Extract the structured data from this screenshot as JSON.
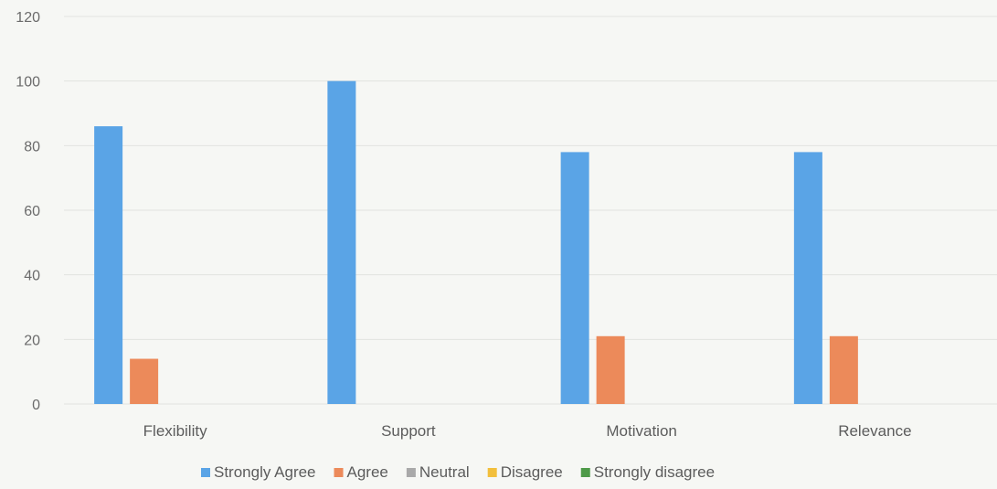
{
  "chart_data": {
    "type": "bar",
    "categories": [
      "Flexibility",
      "Support",
      "Motivation",
      "Relevance"
    ],
    "series": [
      {
        "name": "Strongly Agree",
        "values": [
          86,
          100,
          78,
          78
        ]
      },
      {
        "name": "Agree",
        "values": [
          14,
          0,
          21,
          21
        ]
      },
      {
        "name": "Neutral",
        "values": [
          0,
          0,
          0,
          0
        ]
      },
      {
        "name": "Disagree",
        "values": [
          0,
          0,
          0,
          0
        ]
      },
      {
        "name": "Strongly disagree",
        "values": [
          0,
          0,
          0,
          0
        ]
      }
    ],
    "title": "",
    "xlabel": "",
    "ylabel": "",
    "ylim": [
      0,
      120
    ],
    "yticks": [
      0,
      20,
      40,
      60,
      80,
      100,
      120
    ],
    "grid": true,
    "legend_position": "bottom",
    "colors": {
      "Strongly Agree": "#5aa4e6",
      "Agree": "#ec8a5a",
      "Neutral": "#a9a9a9",
      "Disagree": "#f2bf3c",
      "Strongly disagree": "#4e9a48"
    }
  }
}
